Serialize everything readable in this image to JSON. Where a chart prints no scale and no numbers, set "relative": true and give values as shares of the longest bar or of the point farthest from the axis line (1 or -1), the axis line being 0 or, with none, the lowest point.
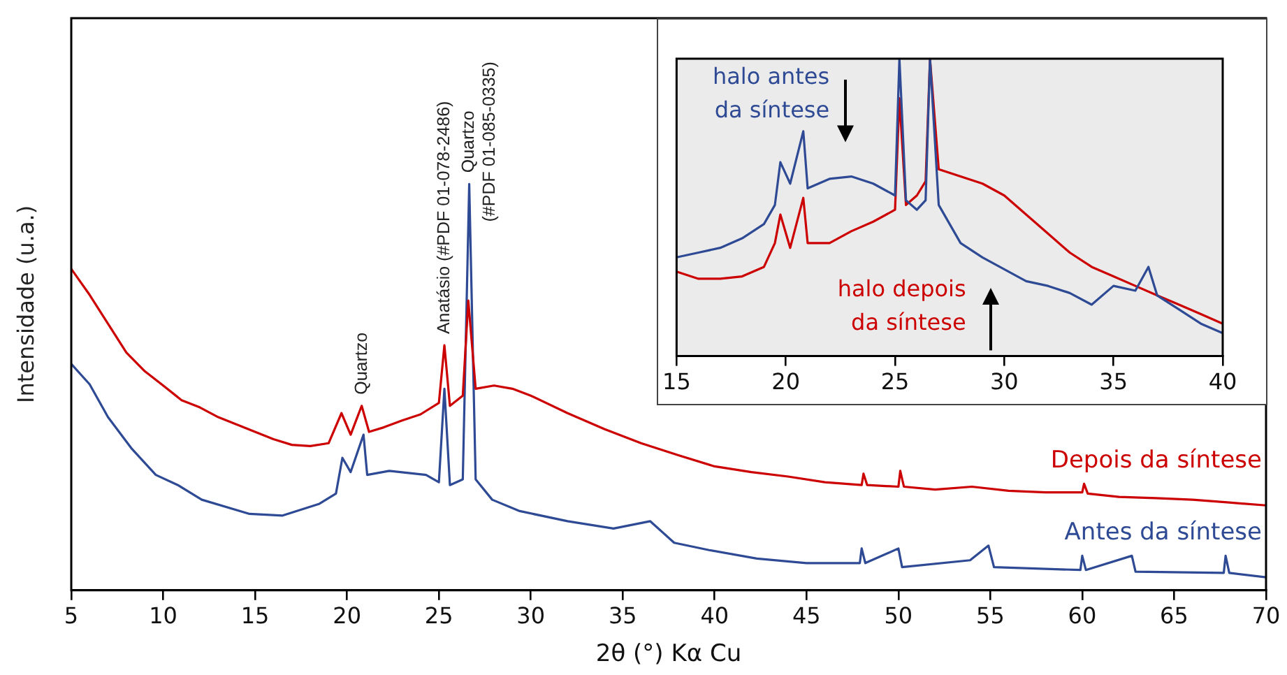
{
  "chart_data": [
    {
      "type": "line",
      "xlabel": "2θ (°) Kα Cu",
      "ylabel": "Intensidade (u.a.)",
      "relative": true,
      "xlim": [
        5,
        70
      ],
      "xticks": [
        5,
        10,
        15,
        20,
        25,
        30,
        35,
        40,
        45,
        50,
        55,
        60,
        65,
        70
      ],
      "legend": false,
      "series": [
        {
          "name": "Depois da síntese",
          "color": "#cc0000",
          "x": [
            5,
            6,
            7,
            8,
            9,
            10,
            11,
            12,
            13,
            14,
            15,
            16,
            17,
            18,
            19,
            19.7,
            20.2,
            20.8,
            21.2,
            22,
            23,
            24,
            25,
            25.3,
            25.6,
            26.3,
            26.6,
            27,
            28,
            29,
            30,
            32,
            34,
            36,
            38,
            40,
            42,
            44,
            46,
            48,
            48.1,
            48.3,
            50,
            50.1,
            50.3,
            52,
            54,
            56,
            58,
            60,
            60.1,
            60.3,
            62,
            64,
            66,
            68,
            70
          ],
          "values": [
            0.791,
            0.727,
            0.656,
            0.585,
            0.539,
            0.504,
            0.468,
            0.45,
            0.426,
            0.408,
            0.39,
            0.372,
            0.358,
            0.355,
            0.362,
            0.436,
            0.383,
            0.454,
            0.39,
            0.401,
            0.418,
            0.433,
            0.461,
            0.603,
            0.454,
            0.479,
            0.713,
            0.496,
            0.504,
            0.496,
            0.479,
            0.436,
            0.397,
            0.362,
            0.333,
            0.305,
            0.291,
            0.28,
            0.266,
            0.259,
            0.287,
            0.259,
            0.255,
            0.294,
            0.255,
            0.248,
            0.255,
            0.245,
            0.241,
            0.241,
            0.262,
            0.238,
            0.23,
            0.227,
            0.223,
            0.216,
            0.209
          ]
        },
        {
          "name": "Antes da síntese",
          "color": "#2e4a94",
          "x": [
            5,
            6,
            7,
            8.3,
            9.6,
            10.8,
            12.1,
            14.7,
            16.5,
            18.5,
            19.4,
            19.75,
            20.2,
            20.9,
            21.1,
            22.3,
            24.3,
            25,
            25.3,
            25.6,
            26.3,
            26.65,
            27,
            27.9,
            29.4,
            32,
            34.5,
            36.5,
            37.8,
            39.7,
            42.3,
            45,
            47.9,
            48,
            48.2,
            50,
            50.2,
            53.9,
            54.9,
            55.2,
            59.9,
            60,
            60.2,
            62.7,
            62.9,
            67.7,
            67.8,
            68,
            70
          ],
          "values": [
            0.557,
            0.507,
            0.426,
            0.348,
            0.284,
            0.259,
            0.223,
            0.188,
            0.184,
            0.213,
            0.238,
            0.326,
            0.291,
            0.383,
            0.284,
            0.294,
            0.284,
            0.266,
            0.496,
            0.259,
            0.273,
            1,
            0.273,
            0.223,
            0.195,
            0.17,
            0.152,
            0.17,
            0.117,
            0.099,
            0.078,
            0.067,
            0.067,
            0.103,
            0.067,
            0.103,
            0.057,
            0.074,
            0.11,
            0.057,
            0.05,
            0.085,
            0.05,
            0.085,
            0.046,
            0.043,
            0.085,
            0.043,
            0.032
          ]
        }
      ],
      "annotations": [
        {
          "text": "Quartzo",
          "x": 20.8,
          "y": 0.454
        },
        {
          "text": "Anatásio (#PDF 01-078-2486)",
          "x": 25.3,
          "y": 0.603
        },
        {
          "text": "Quartzo\n(#PDF 01-085-0335)",
          "x": 26.65,
          "y": 1
        }
      ]
    },
    {
      "type": "line",
      "relative": true,
      "xlim": [
        15,
        40
      ],
      "xticks": [
        15,
        20,
        25,
        30,
        35,
        40
      ],
      "legend": false,
      "series": [
        {
          "color": "#2e4a94",
          "x": [
            15,
            16,
            17,
            18,
            19,
            19.5,
            19.75,
            20.2,
            20.8,
            21,
            22,
            23,
            24,
            25,
            25.2,
            25.5,
            26,
            26.4,
            26.6,
            27,
            28,
            29,
            30,
            31,
            32,
            33,
            34,
            35,
            36,
            36.6,
            37,
            38,
            39,
            40
          ],
          "values": [
            0.332,
            0.348,
            0.364,
            0.396,
            0.444,
            0.508,
            0.652,
            0.58,
            0.756,
            0.564,
            0.596,
            0.604,
            0.58,
            0.54,
            1,
            0.524,
            0.492,
            0.524,
            1,
            0.508,
            0.38,
            0.332,
            0.292,
            0.252,
            0.236,
            0.212,
            0.173,
            0.236,
            0.22,
            0.3,
            0.204,
            0.157,
            0.109,
            0.077
          ]
        },
        {
          "color": "#cc0000",
          "x": [
            15,
            16,
            17,
            18,
            19,
            19.5,
            19.75,
            20.2,
            20.8,
            21,
            22,
            23,
            24,
            25,
            25.2,
            25.5,
            26,
            26.4,
            26.6,
            27,
            28,
            29,
            30,
            31,
            32,
            33,
            34,
            35,
            36,
            37,
            38,
            39,
            40
          ],
          "values": [
            0.284,
            0.26,
            0.26,
            0.268,
            0.3,
            0.38,
            0.476,
            0.364,
            0.532,
            0.38,
            0.38,
            0.42,
            0.452,
            0.492,
            0.867,
            0.508,
            0.54,
            0.588,
            1,
            0.628,
            0.604,
            0.58,
            0.54,
            0.476,
            0.412,
            0.348,
            0.3,
            0.268,
            0.236,
            0.204,
            0.173,
            0.141,
            0.109
          ]
        }
      ],
      "annotations": [
        "halo antes\nda síntese",
        "halo depois\nda síntese"
      ]
    }
  ]
}
